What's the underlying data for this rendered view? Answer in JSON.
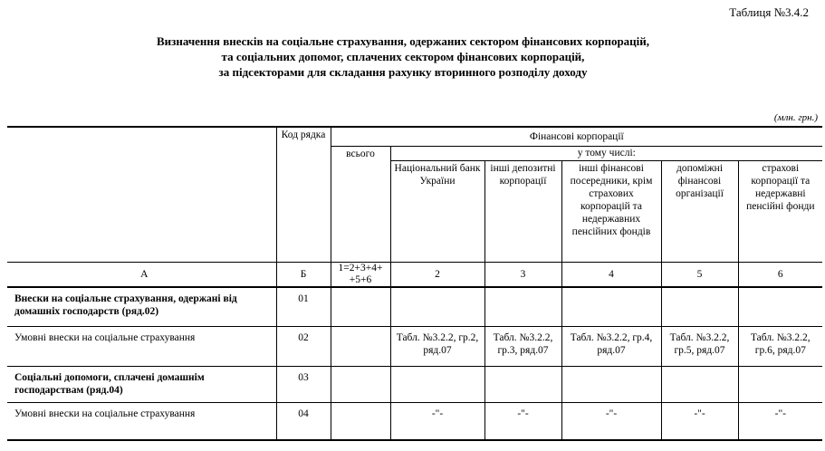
{
  "table_number": "Таблиця №3.4.2",
  "title_lines": [
    "Визначення внесків на соціальне страхування, одержаних сектором фінансових корпорацій,",
    "та соціальних допомог, сплачених сектором фінансових корпорацій,",
    "за підсекторами для складання рахунку вторинного розподілу доходу"
  ],
  "units": "(млн. грн.)",
  "header": {
    "code": "Код рядка",
    "group": "Фінансові корпорації",
    "total": "всього",
    "including": "у тому числі:",
    "subsectors": [
      "Національний банк України",
      "інші депозитні корпорації",
      "інші фінансові посередники, крім страхових корпорацій та недержавних пенсійних фондів",
      "допоміжні фінансові організації",
      "страхові корпорації та недержавні пенсійні фонди"
    ],
    "col_numbers": [
      "А",
      "Б",
      "1=2+3+4+ +5+6",
      "2",
      "3",
      "4",
      "5",
      "6"
    ]
  },
  "rows": [
    {
      "label": "Внески на соціальне страхування, одержані від домашніх господарств (ряд.02)",
      "code": "01",
      "bold": true,
      "cells": [
        "",
        "",
        "",
        "",
        "",
        ""
      ]
    },
    {
      "label": "Умовні внески на соціальне  страхування",
      "code": "02",
      "bold": false,
      "cells": [
        "",
        "Табл. №3.2.2, гр.2, ряд.07",
        "Табл. №3.2.2, гр.3, ряд.07",
        "Табл. №3.2.2, гр.4, ряд.07",
        "Табл. №3.2.2, гр.5, ряд.07",
        "Табл. №3.2.2, гр.6, ряд.07"
      ]
    },
    {
      "label": "Соціальні допомоги, сплачені домашнім господарствам (ряд.04)",
      "code": "03",
      "bold": true,
      "cells": [
        "",
        "",
        "",
        "",
        "",
        ""
      ]
    },
    {
      "label": "Умовні внески на соціальне  страхування",
      "code": "04",
      "bold": false,
      "cells": [
        "",
        "-\"-",
        "-\"-",
        "-\"-",
        "-\"-",
        "-\"-"
      ]
    }
  ]
}
